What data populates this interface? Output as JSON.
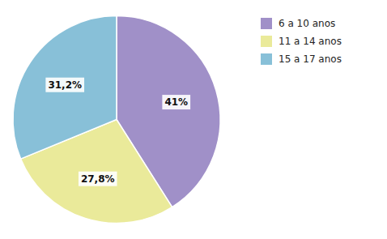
{
  "chart_data": {
    "type": "pie",
    "categories": [
      "6 a 10 anos",
      "11 a 14 anos",
      "15 a 17 anos"
    ],
    "values": [
      41.0,
      27.8,
      31.2
    ],
    "value_labels": [
      "41%",
      "27,8%",
      "31,2%"
    ],
    "colors": [
      "#a090c8",
      "#eaea9a",
      "#88c0d8"
    ],
    "data_labels": true,
    "legend": "upper right"
  }
}
